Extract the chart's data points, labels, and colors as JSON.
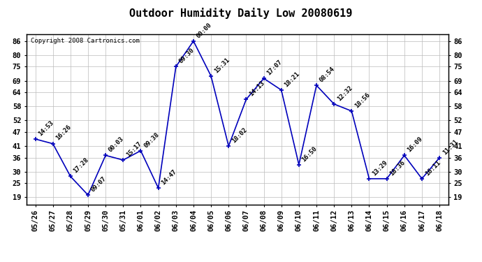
{
  "title": "Outdoor Humidity Daily Low 20080619",
  "copyright": "Copyright 2008 Cartronics.com",
  "dates": [
    "05/26",
    "05/27",
    "05/28",
    "05/29",
    "05/30",
    "05/31",
    "06/01",
    "06/02",
    "06/03",
    "06/04",
    "06/05",
    "06/06",
    "06/07",
    "06/08",
    "06/09",
    "06/10",
    "06/11",
    "06/12",
    "06/13",
    "06/14",
    "06/15",
    "06/16",
    "06/17",
    "06/18"
  ],
  "values": [
    44,
    42,
    28,
    20,
    37,
    35,
    39,
    23,
    75,
    86,
    71,
    41,
    61,
    70,
    65,
    33,
    67,
    59,
    56,
    27,
    27,
    37,
    27,
    36
  ],
  "labels": [
    "14:53",
    "16:26",
    "17:28",
    "09:07",
    "00:03",
    "15:17",
    "09:38",
    "14:47",
    "09:30",
    "00:00",
    "15:31",
    "18:02",
    "14:13",
    "17:07",
    "18:21",
    "16:50",
    "08:54",
    "12:32",
    "18:56",
    "13:29",
    "18:36",
    "16:09",
    "16:11",
    "11:31"
  ],
  "line_color": "#0000bb",
  "marker_color": "#0000bb",
  "bg_color": "#ffffff",
  "grid_color": "#bbbbbb",
  "yticks": [
    19,
    25,
    30,
    36,
    41,
    47,
    52,
    58,
    64,
    69,
    75,
    80,
    86
  ],
  "ylim": [
    16,
    89
  ],
  "title_fontsize": 11,
  "label_fontsize": 6.5,
  "copyright_fontsize": 6.5,
  "tick_fontsize": 7.5
}
